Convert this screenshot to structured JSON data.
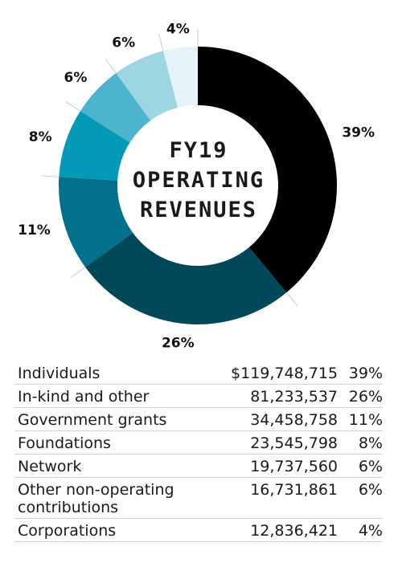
{
  "chart_data": {
    "type": "pie",
    "title_lines": [
      "FY19",
      "OPERATING",
      "REVENUES"
    ],
    "slices": [
      {
        "label": "Individuals",
        "amount": "$119,748,715",
        "percent": 39,
        "percent_label": "39%",
        "color": "#000000"
      },
      {
        "label": "In-kind and other",
        "amount": "81,233,537",
        "percent": 26,
        "percent_label": "26%",
        "color": "#01485b"
      },
      {
        "label": "Government grants",
        "amount": "34,458,758",
        "percent": 11,
        "percent_label": "11%",
        "color": "#02718c"
      },
      {
        "label": "Foundations",
        "amount": "23,545,798",
        "percent": 8,
        "percent_label": "8%",
        "color": "#029ab6"
      },
      {
        "label": "Network",
        "amount": "19,737,560",
        "percent": 6,
        "percent_label": "6%",
        "color": "#4cb4cc"
      },
      {
        "label": "Other non-operating contributions",
        "amount": "16,731,861",
        "percent": 6,
        "percent_label": "6%",
        "color": "#9dd5e3"
      },
      {
        "label": "Corporations",
        "amount": "12,836,421",
        "percent": 4,
        "percent_label": "4%",
        "color": "#e4f3f8"
      }
    ]
  }
}
